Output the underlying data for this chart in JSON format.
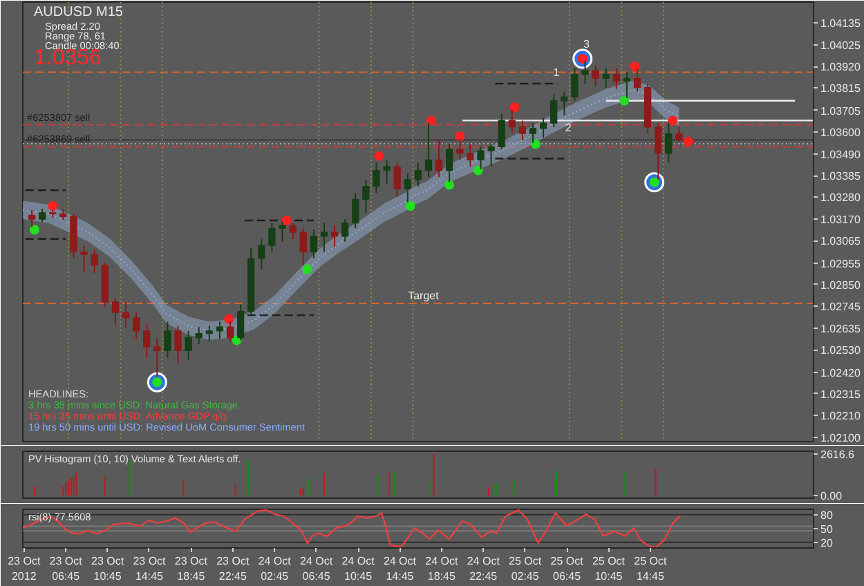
{
  "chart_data": [
    {
      "type": "candlestick",
      "title": "AUDUSD M15",
      "subtitle": "Spread 2.20\nRange 78, 61\nCandle 00:08:40",
      "x": [
        "2012-10-23T03:30",
        "2012-10-23T04:30",
        "2012-10-23T05:30",
        "2012-10-23T06:30",
        "2012-10-23T07:30",
        "2012-10-23T08:30",
        "2012-10-23T09:30",
        "2012-10-23T10:30",
        "2012-10-23T11:30",
        "2012-10-23T12:30",
        "2012-10-23T13:30",
        "2012-10-23T14:30",
        "2012-10-23T15:30",
        "2012-10-23T16:30",
        "2012-10-23T17:30",
        "2012-10-23T18:30",
        "2012-10-23T19:30",
        "2012-10-23T20:30",
        "2012-10-23T21:30",
        "2012-10-23T22:30",
        "2012-10-23T23:30",
        "2012-10-24T00:30",
        "2012-10-24T01:30",
        "2012-10-24T02:30",
        "2012-10-24T03:30",
        "2012-10-24T04:30",
        "2012-10-24T05:30",
        "2012-10-24T06:30",
        "2012-10-24T07:30",
        "2012-10-24T08:30",
        "2012-10-24T09:30",
        "2012-10-24T10:30",
        "2012-10-24T11:30",
        "2012-10-24T12:30",
        "2012-10-24T13:30",
        "2012-10-24T14:30",
        "2012-10-24T15:30",
        "2012-10-24T16:30",
        "2012-10-24T17:30",
        "2012-10-24T18:30",
        "2012-10-24T19:30",
        "2012-10-24T20:30",
        "2012-10-24T21:30",
        "2012-10-24T22:30",
        "2012-10-24T23:30",
        "2012-10-25T00:30",
        "2012-10-25T01:30",
        "2012-10-25T02:30",
        "2012-10-25T03:30",
        "2012-10-25T04:30",
        "2012-10-25T05:30",
        "2012-10-25T06:30",
        "2012-10-25T07:30",
        "2012-10-25T08:30",
        "2012-10-25T09:30",
        "2012-10-25T10:30",
        "2012-10-25T11:30",
        "2012-10-25T12:30",
        "2012-10-25T13:30",
        "2012-10-25T14:30",
        "2012-10-25T15:30",
        "2012-10-25T16:30",
        "2012-10-25T17:30"
      ],
      "ohlc": [
        [
          1.0319,
          1.03216,
          1.03132,
          1.03171
        ],
        [
          1.03171,
          1.03223,
          1.03158,
          1.03203
        ],
        [
          1.03203,
          1.03216,
          1.03178,
          1.03197
        ],
        [
          1.03197,
          1.03216,
          1.03165,
          1.03184
        ],
        [
          1.03184,
          1.03197,
          1.02978,
          1.0301
        ],
        [
          1.0301,
          1.03042,
          1.02913,
          1.02997
        ],
        [
          1.02997,
          1.03023,
          1.02907,
          1.02945
        ],
        [
          1.02945,
          1.02958,
          1.02739,
          1.02765
        ],
        [
          1.02765,
          1.02784,
          1.02655,
          1.02713
        ],
        [
          1.02713,
          1.02765,
          1.02635,
          1.02687
        ],
        [
          1.02687,
          1.02713,
          1.02584,
          1.02623
        ],
        [
          1.02623,
          1.02655,
          1.02493,
          1.02545
        ],
        [
          1.02545,
          1.0259,
          1.02397,
          1.02526
        ],
        [
          1.02526,
          1.02668,
          1.02493,
          1.02623
        ],
        [
          1.02623,
          1.02648,
          1.02461,
          1.02526
        ],
        [
          1.02526,
          1.02623,
          1.02481,
          1.0259
        ],
        [
          1.0259,
          1.02642,
          1.02558,
          1.0261
        ],
        [
          1.0261,
          1.02648,
          1.02571,
          1.02623
        ],
        [
          1.02623,
          1.02668,
          1.02584,
          1.02642
        ],
        [
          1.02642,
          1.02668,
          1.02571,
          1.0259
        ],
        [
          1.0259,
          1.02752,
          1.02577,
          1.02719
        ],
        [
          1.02719,
          1.03029,
          1.027,
          1.02978
        ],
        [
          1.02978,
          1.03074,
          1.02926,
          1.03042
        ],
        [
          1.03042,
          1.03152,
          1.0301,
          1.03126
        ],
        [
          1.03126,
          1.03158,
          1.03061,
          1.03139
        ],
        [
          1.03139,
          1.03152,
          1.03074,
          1.03107
        ],
        [
          1.03107,
          1.03126,
          1.02945,
          1.0301
        ],
        [
          1.0301,
          1.03119,
          1.02978,
          1.03087
        ],
        [
          1.03087,
          1.03152,
          1.0301,
          1.03107
        ],
        [
          1.03107,
          1.03139,
          1.03036,
          1.03087
        ],
        [
          1.03087,
          1.03171,
          1.03061,
          1.03152
        ],
        [
          1.03152,
          1.033,
          1.03126,
          1.03268
        ],
        [
          1.03268,
          1.03365,
          1.03203,
          1.03332
        ],
        [
          1.03332,
          1.03449,
          1.033,
          1.0341
        ],
        [
          1.0341,
          1.03462,
          1.03345,
          1.03429
        ],
        [
          1.03429,
          1.03449,
          1.03281,
          1.0332
        ],
        [
          1.0332,
          1.03397,
          1.03255,
          1.03365
        ],
        [
          1.03365,
          1.03449,
          1.03332,
          1.0341
        ],
        [
          1.0341,
          1.03642,
          1.03378,
          1.03462
        ],
        [
          1.03462,
          1.03558,
          1.03378,
          1.0341
        ],
        [
          1.0341,
          1.03539,
          1.03352,
          1.03513
        ],
        [
          1.03513,
          1.03565,
          1.03462,
          1.03494
        ],
        [
          1.03494,
          1.03539,
          1.03429,
          1.03462
        ],
        [
          1.03462,
          1.03526,
          1.03416,
          1.03507
        ],
        [
          1.03507,
          1.03539,
          1.03429,
          1.03526
        ],
        [
          1.03526,
          1.03687,
          1.03513,
          1.03655
        ],
        [
          1.03655,
          1.03707,
          1.03591,
          1.03623
        ],
        [
          1.03623,
          1.03655,
          1.03558,
          1.03591
        ],
        [
          1.03591,
          1.03642,
          1.03545,
          1.03616
        ],
        [
          1.03616,
          1.03668,
          1.03571,
          1.03642
        ],
        [
          1.03642,
          1.03784,
          1.03623,
          1.03752
        ],
        [
          1.03752,
          1.03797,
          1.03681,
          1.03771
        ],
        [
          1.03771,
          1.03913,
          1.03752,
          1.03881
        ],
        [
          1.03881,
          1.03946,
          1.03836,
          1.039
        ],
        [
          1.039,
          1.03926,
          1.03823,
          1.03862
        ],
        [
          1.03862,
          1.03913,
          1.03817,
          1.03881
        ],
        [
          1.03881,
          1.03913,
          1.0381,
          1.03849
        ],
        [
          1.03849,
          1.03894,
          1.03765,
          1.03862
        ],
        [
          1.03862,
          1.03907,
          1.03797,
          1.03817
        ],
        [
          1.03817,
          1.03836,
          1.03591,
          1.03623
        ],
        [
          1.03623,
          1.03642,
          1.03365,
          1.03494
        ],
        [
          1.03494,
          1.03642,
          1.03449,
          1.03591
        ],
        [
          1.03591,
          1.03623,
          1.03552,
          1.0356
        ]
      ],
      "colors": [
        "#8e1a1a",
        "#163f16",
        "#8e1a1a",
        "#8e1a1a",
        "#8e1a1a",
        "#8e1a1a",
        "#8e1a1a",
        "#8e1a1a",
        "#8e1a1a",
        "#8e1a1a",
        "#8e1a1a",
        "#8e1a1a",
        "#8e1a1a",
        "#163f16",
        "#8e1a1a",
        "#163f16",
        "#163f16",
        "#163f16",
        "#163f16",
        "#8e1a1a",
        "#163f16",
        "#163f16",
        "#163f16",
        "#163f16",
        "#163f16",
        "#8e1a1a",
        "#8e1a1a",
        "#163f16",
        "#163f16",
        "#8e1a1a",
        "#163f16",
        "#163f16",
        "#163f16",
        "#163f16",
        "#163f16",
        "#8e1a1a",
        "#163f16",
        "#163f16",
        "#163f16",
        "#8e1a1a",
        "#163f16",
        "#8e1a1a",
        "#8e1a1a",
        "#163f16",
        "#163f16",
        "#163f16",
        "#8e1a1a",
        "#8e1a1a",
        "#163f16",
        "#163f16",
        "#163f16",
        "#163f16",
        "#163f16",
        "#163f16",
        "#8e1a1a",
        "#163f16",
        "#8e1a1a",
        "#163f16",
        "#8e1a1a",
        "#8e1a1a",
        "#8e1a1a",
        "#163f16",
        "#8e1a1a"
      ],
      "series": [
        {
          "type": "line",
          "color": "#8ea5c5",
          "line_style": "dotted",
          "x": [
            "2012-10-23T02:38",
            "2012-10-23T05:08",
            "2012-10-23T06:45",
            "2012-10-23T08:53",
            "2012-10-23T11:00",
            "2012-10-23T13:00",
            "2012-10-23T15:08",
            "2012-10-23T16:23",
            "2012-10-23T18:30",
            "2012-10-23T20:30",
            "2012-10-23T22:38",
            "2012-10-24T00:45",
            "2012-10-24T02:45",
            "2012-10-24T04:53",
            "2012-10-24T07:00",
            "2012-10-24T09:00",
            "2012-10-24T11:08",
            "2012-10-24T13:15",
            "2012-10-24T15:15",
            "2012-10-24T16:08",
            "2012-10-24T17:23",
            "2012-10-24T19:30",
            "2012-10-24T22:23",
            "2012-10-25T00:30",
            "2012-10-25T03:00",
            "2012-10-25T05:30",
            "2012-10-25T08:00",
            "2012-10-25T10:30",
            "2012-10-25T13:00",
            "2012-10-25T14:38",
            "2012-10-25T16:15",
            "2012-10-25T17:30"
          ],
          "values": [
            1.03216,
            1.03197,
            1.03158,
            1.03107,
            1.03029,
            1.02926,
            1.02797,
            1.02706,
            1.02648,
            1.02623,
            1.02635,
            1.02674,
            1.02752,
            1.02868,
            1.02978,
            1.03055,
            1.03126,
            1.03203,
            1.03255,
            1.03287,
            1.03313,
            1.03397,
            1.03462,
            1.03507,
            1.03571,
            1.03642,
            1.03707,
            1.03765,
            1.03804,
            1.03784,
            1.03707,
            1.03674
          ],
          "lower": [
            1.03171,
            1.03152,
            1.03113,
            1.03062,
            1.02984,
            1.02881,
            1.02752,
            1.02661,
            1.02603,
            1.02578,
            1.0259,
            1.02629,
            1.02707,
            1.02823,
            1.02933,
            1.0301,
            1.03081,
            1.03158,
            1.0321,
            1.03242,
            1.03268,
            1.03352,
            1.03417,
            1.03462,
            1.03526,
            1.03597,
            1.03662,
            1.0372,
            1.03759,
            1.03739,
            1.03662,
            1.03629
          ],
          "upper": [
            1.03261,
            1.03242,
            1.03203,
            1.03152,
            1.03074,
            1.02971,
            1.02842,
            1.02751,
            1.02693,
            1.02668,
            1.0268,
            1.02719,
            1.02797,
            1.02913,
            1.03023,
            1.031,
            1.03171,
            1.03248,
            1.033,
            1.03332,
            1.03358,
            1.03442,
            1.03507,
            1.03552,
            1.03616,
            1.03687,
            1.03752,
            1.0381,
            1.03849,
            1.03829,
            1.03752,
            1.03719
          ]
        },
        {
          "type": "line",
          "color": "#ececec",
          "x": [
            "2012-10-25T10:30",
            "2012-10-26T04:36"
          ],
          "values": [
            1.03752,
            1.03752
          ]
        },
        {
          "type": "line",
          "color": "#ececec",
          "x": [
            "2012-10-24T20:45",
            "2012-10-26T06:23"
          ],
          "values": [
            1.03655,
            1.03655
          ]
        },
        {
          "type": "line",
          "color": "#1e1e1e",
          "line_style": "dashed",
          "x": [
            "2012-10-23T02:53",
            "2012-10-23T06:45"
          ],
          "values": [
            1.03313,
            1.03313
          ]
        },
        {
          "type": "line",
          "color": "#1e1e1e",
          "line_style": "dashed",
          "x": [
            "2012-10-23T02:53",
            "2012-10-23T06:45"
          ],
          "values": [
            1.03074,
            1.03074
          ]
        },
        {
          "type": "line",
          "color": "#1e1e1e",
          "line_style": "dashed",
          "x": [
            "2012-10-23T23:53",
            "2012-10-24T06:30"
          ],
          "values": [
            1.03165,
            1.03165
          ]
        },
        {
          "type": "line",
          "color": "#1e1e1e",
          "line_style": "dashed",
          "x": [
            "2012-10-24T00:08",
            "2012-10-24T06:30"
          ],
          "values": [
            1.027,
            1.027
          ]
        },
        {
          "type": "line",
          "color": "#1e1e1e",
          "line_style": "dashed",
          "x": [
            "2012-10-24T23:53",
            "2012-10-25T05:53"
          ],
          "values": [
            1.03836,
            1.03836
          ]
        },
        {
          "type": "line",
          "color": "#1e1e1e",
          "line_style": "dashed",
          "x": [
            "2012-10-24T23:53",
            "2012-10-25T06:30"
          ],
          "values": [
            1.03468,
            1.03468
          ]
        },
        {
          "type": "bubble",
          "color": "#2f72e0",
          "marker": "circle",
          "x": [
            "2012-10-23T15:30",
            "2012-10-25T08:15",
            "2012-10-25T15:08"
          ],
          "values": [
            1.02371,
            1.03958,
            1.03352
          ],
          "sizes": [
            1,
            1,
            1
          ]
        },
        {
          "type": "scatter",
          "color": "#ff2020",
          "marker": "circle",
          "x": [
            "2012-10-23T05:30",
            "2012-10-23T22:23",
            "2012-10-24T03:53",
            "2012-10-24T12:45",
            "2012-10-24T17:45",
            "2012-10-24T20:30",
            "2012-10-25T01:45",
            "2012-10-25T08:15",
            "2012-10-25T13:15",
            "2012-10-25T16:53",
            "2012-10-25T18:23"
          ],
          "values": [
            1.03236,
            1.02681,
            1.03165,
            1.03481,
            1.03655,
            1.03578,
            1.0372,
            1.03958,
            1.0392,
            1.03655,
            1.03552
          ]
        },
        {
          "type": "scatter",
          "color": "#20e020",
          "marker": "circle",
          "x": [
            "2012-10-23T03:45",
            "2012-10-23T15:30",
            "2012-10-23T23:08",
            "2012-10-24T05:53",
            "2012-10-24T15:45",
            "2012-10-24T19:30",
            "2012-10-24T22:15",
            "2012-10-25T03:45",
            "2012-10-25T12:15",
            "2012-10-25T15:08"
          ],
          "values": [
            1.03119,
            1.02371,
            1.02577,
            1.02926,
            1.03236,
            1.03339,
            1.0341,
            1.03539,
            1.03752,
            1.03352
          ]
        }
      ],
      "xlim": [
        "2012-10-23T02:38",
        "2012-10-26T06:23"
      ],
      "ylim": [
        1.0208,
        1.04236
      ],
      "yticks": [
        {
          "value": 1.021,
          "label": "1.02100"
        },
        {
          "value": 1.0221,
          "label": "1.02210"
        },
        1.02315,
        {
          "value": 1.0242,
          "label": "1.02420"
        },
        {
          "value": 1.0253,
          "label": "1.02530"
        },
        1.02635,
        1.02745,
        {
          "value": 1.0285,
          "label": "1.02850"
        },
        1.02955,
        1.03065,
        {
          "value": 1.0317,
          "label": "1.03170"
        },
        {
          "value": 1.0328,
          "label": "1.03280"
        },
        1.03385,
        {
          "value": 1.0349,
          "label": "1.03490"
        },
        {
          "value": 1.036,
          "label": "1.03600"
        },
        1.03705,
        1.03815,
        {
          "value": 1.0392,
          "label": "1.03920"
        },
        1.04025,
        1.04135
      ],
      "tick_labels": "y",
      "ref_lines": [
        {
          "axis": "y",
          "value": 1.03892,
          "color": "#d8642c",
          "line_style": "dashed"
        },
        {
          "axis": "y",
          "value": 1.03634,
          "color": "#c83c3c",
          "line_style": "dashed",
          "label": "#6253807 sell"
        },
        {
          "axis": "y",
          "value": 1.0356,
          "color": "#3a3a3a",
          "line_style": "solid"
        },
        {
          "axis": "y",
          "value": 1.03541,
          "color": "#a8a8a8",
          "line_style": "dotted"
        },
        {
          "axis": "y",
          "value": 1.03526,
          "color": "#c83c3c",
          "line_style": "dashed",
          "label": "#6253869 sell"
        },
        {
          "axis": "y",
          "value": 1.02758,
          "color": "#d8642c",
          "line_style": "dashed"
        },
        {
          "axis": "x",
          "value": "2012-10-23T07:00",
          "color": "#8c8c4a",
          "line_style": "dotted"
        },
        {
          "axis": "x",
          "value": "2012-10-23T12:00",
          "color": "#8c8c4a",
          "line_style": "dotted"
        },
        {
          "axis": "x",
          "value": "2012-10-23T16:00",
          "color": "#8c8c4a",
          "line_style": "dotted"
        },
        {
          "axis": "x",
          "value": "2012-10-24T07:00",
          "color": "#8c8c4a",
          "line_style": "dotted"
        },
        {
          "axis": "x",
          "value": "2012-10-24T12:00",
          "color": "#8c8c4a",
          "line_style": "dotted"
        },
        {
          "axis": "x",
          "value": "2012-10-24T16:00",
          "color": "#8c8c4a",
          "line_style": "dotted"
        },
        {
          "axis": "x",
          "value": "2012-10-25T07:00",
          "color": "#8c8c4a",
          "line_style": "dotted"
        },
        {
          "axis": "x",
          "value": "2012-10-25T12:00",
          "color": "#8c8c4a",
          "line_style": "dotted"
        },
        {
          "axis": "x",
          "value": "2012-10-25T16:00",
          "color": "#8c8c4a",
          "line_style": "dotted"
        }
      ],
      "annotations": [
        "1.0356",
        "HEADLINES:",
        "3 hrs 35 mins since USD: Natural Gas Storage",
        "15 hrs 35 mins until USD: Advance GDP q/q",
        "19 hrs 50 mins until USD: Revised UoM Consumer Sentiment",
        {
          "text": "1",
          "x": "2012-10-25T05:45",
          "y": 1.03868
        },
        {
          "text": "2",
          "x": "2012-10-25T06:53",
          "y": 1.03594
        },
        {
          "text": "3",
          "x": "2012-10-25T08:38",
          "y": 1.04007
        },
        {
          "text": "Target",
          "x": "2012-10-24T17:00",
          "y": 1.02758
        }
      ]
    },
    {
      "type": "bar",
      "title": "PV Histogram (10, 10) Volume & Text Alerts off.",
      "series": [
        {
          "color": "#b42020",
          "x": [
            "2012-10-23T03:45",
            "2012-10-23T06:30",
            "2012-10-23T06:45",
            "2012-10-23T07:00",
            "2012-10-23T07:15",
            "2012-10-23T07:30",
            "2012-10-23T07:45",
            "2012-10-23T10:30",
            "2012-10-23T18:00",
            "2012-10-23T23:00",
            "2012-10-24T05:15",
            "2012-10-24T05:30",
            "2012-10-24T07:30",
            "2012-10-24T13:45",
            "2012-10-24T18:00",
            "2012-10-24T23:15",
            "2012-10-25T15:15"
          ],
          "values": [
            600,
            600,
            800,
            900,
            1100,
            1200,
            1500,
            1200,
            1000,
            700,
            400,
            500,
            1400,
            1500,
            2616.6,
            500,
            1700
          ]
        },
        {
          "color": "#1e8a1e",
          "x": [
            "2012-10-23T13:00",
            "2012-10-24T00:15",
            "2012-10-24T06:00",
            "2012-10-24T12:45",
            "2012-10-24T14:15",
            "2012-10-24T17:45",
            "2012-10-24T23:45",
            "2012-10-25T00:00",
            "2012-10-25T01:45",
            "2012-10-25T05:30",
            "2012-10-25T05:45",
            "2012-10-25T12:15"
          ],
          "values": [
            2300,
            2300,
            1200,
            1300,
            1500,
            800,
            700,
            800,
            1000,
            1000,
            1600,
            1500
          ]
        }
      ],
      "xlim": [
        "2012-10-23T02:38",
        "2012-10-26T06:23"
      ],
      "ylim": [
        -175,
        2790
      ],
      "yticks": [
        {
          "value": 0,
          "label": "0.00"
        },
        2616.6
      ],
      "tick_labels": "y"
    },
    {
      "type": "line",
      "title": "rsi(8) 77.5608",
      "color": "#e84040",
      "x": [
        "2012-10-23T02:38",
        "2012-10-23T03:28",
        "2012-10-23T04:30",
        "2012-10-23T05:20",
        "2012-10-23T05:58",
        "2012-10-23T06:47",
        "2012-10-23T07:25",
        "2012-10-23T08:02",
        "2012-10-23T08:53",
        "2012-10-23T09:43",
        "2012-10-23T10:32",
        "2012-10-23T11:23",
        "2012-10-23T12:38",
        "2012-10-23T13:53",
        "2012-10-23T14:43",
        "2012-10-23T15:32",
        "2012-10-23T16:23",
        "2012-10-23T17:13",
        "2012-10-23T18:02",
        "2012-10-23T18:40",
        "2012-10-23T19:17",
        "2012-10-23T20:08",
        "2012-10-23T20:58",
        "2012-10-23T22:13",
        "2012-10-23T23:02",
        "2012-10-23T23:53",
        "2012-10-24T01:08",
        "2012-10-24T01:58",
        "2012-10-24T02:47",
        "2012-10-24T03:38",
        "2012-10-24T04:28",
        "2012-10-24T05:17",
        "2012-10-24T05:55",
        "2012-10-24T06:20",
        "2012-10-24T06:58",
        "2012-10-24T07:47",
        "2012-10-24T08:38",
        "2012-10-24T09:28",
        "2012-10-24T10:17",
        "2012-10-24T10:43",
        "2012-10-24T11:32",
        "2012-10-24T12:23",
        "2012-10-24T13:00",
        "2012-10-24T13:25",
        "2012-10-24T13:50",
        "2012-10-24T14:53",
        "2012-10-24T15:43",
        "2012-10-24T16:08",
        "2012-10-24T16:58",
        "2012-10-24T17:35",
        "2012-10-24T18:25",
        "2012-10-24T19:28",
        "2012-10-24T20:43",
        "2012-10-24T21:32",
        "2012-10-24T22:35",
        "2012-10-24T23:25",
        "2012-10-25T00:02",
        "2012-10-25T00:53",
        "2012-10-25T02:08",
        "2012-10-25T02:58",
        "2012-10-25T04:00",
        "2012-10-25T04:38",
        "2012-10-25T05:40",
        "2012-10-25T06:43",
        "2012-10-25T07:32",
        "2012-10-25T08:35",
        "2012-10-25T09:25",
        "2012-10-25T10:15",
        "2012-10-25T11:17",
        "2012-10-25T12:20",
        "2012-10-25T13:10",
        "2012-10-25T13:47",
        "2012-10-25T14:38",
        "2012-10-25T15:15",
        "2012-10-25T16:05",
        "2012-10-25T16:55",
        "2012-10-25T17:38"
      ],
      "values": [
        51,
        59,
        71,
        76,
        66,
        47,
        40,
        39,
        46,
        39,
        46,
        59,
        62,
        55,
        68,
        62,
        66,
        73,
        62,
        42,
        51,
        62,
        64,
        51,
        44,
        70,
        88,
        90,
        81,
        77,
        62,
        47,
        18,
        33,
        40,
        33,
        51,
        55,
        66,
        77,
        73,
        76,
        84,
        53,
        14,
        10,
        36,
        51,
        40,
        27,
        47,
        27,
        66,
        59,
        31,
        44,
        40,
        77,
        90,
        70,
        19,
        40,
        84,
        56,
        66,
        81,
        70,
        34,
        44,
        34,
        51,
        25,
        12,
        9,
        25,
        62,
        78
      ],
      "xlim": [
        "2012-10-23T02:38",
        "2012-10-26T06:23"
      ],
      "ylim": [
        7.8,
        91.8
      ],
      "xticks": [
        {
          "value": "2012-10-23T02:45",
          "label": "23 Oct 2012"
        },
        {
          "value": "2012-10-23T06:45",
          "label": "23 Oct 06:45"
        },
        {
          "value": "2012-10-23T10:45",
          "label": "23 Oct 10:45"
        },
        {
          "value": "2012-10-23T14:45",
          "label": "23 Oct 14:45"
        },
        {
          "value": "2012-10-23T18:45",
          "label": "23 Oct 18:45"
        },
        {
          "value": "2012-10-23T22:45",
          "label": "23 Oct 22:45"
        },
        {
          "value": "2012-10-24T02:45",
          "label": "24 Oct 02:45"
        },
        {
          "value": "2012-10-24T06:45",
          "label": "24 Oct 06:45"
        },
        {
          "value": "2012-10-24T10:45",
          "label": "24 Oct 10:45"
        },
        {
          "value": "2012-10-24T14:45",
          "label": "24 Oct 14:45"
        },
        {
          "value": "2012-10-24T18:45",
          "label": "24 Oct 18:45"
        },
        {
          "value": "2012-10-24T22:45",
          "label": "24 Oct 22:45"
        },
        {
          "value": "2012-10-25T02:45",
          "label": "25 Oct 02:45"
        },
        {
          "value": "2012-10-25T06:45",
          "label": "25 Oct 06:45"
        },
        {
          "value": "2012-10-25T10:45",
          "label": "25 Oct 10:45"
        },
        {
          "value": "2012-10-25T14:45",
          "label": "25 Oct 14:45"
        }
      ],
      "yticks": [
        20,
        50,
        80
      ],
      "ref_lines": [
        {
          "axis": "y",
          "value": 80,
          "color": "#2e2e2e"
        },
        {
          "axis": "y",
          "value": 55,
          "color": "#7a7a7a"
        },
        {
          "axis": "y",
          "value": 45,
          "color": "#7a7a7a"
        },
        {
          "axis": "y",
          "value": 20,
          "color": "#2e2e2e"
        }
      ]
    }
  ]
}
